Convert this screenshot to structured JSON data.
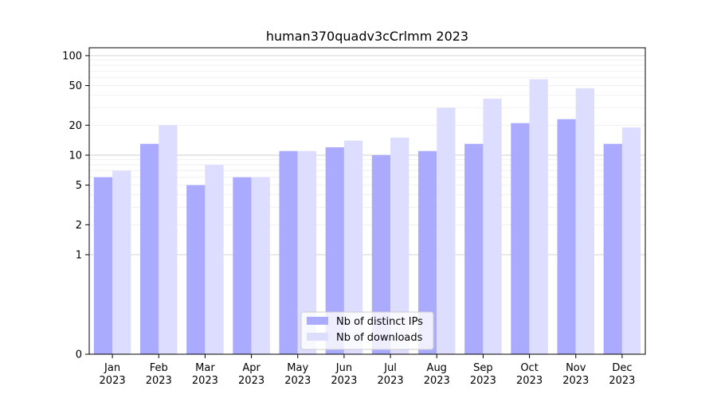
{
  "chart_data": {
    "type": "bar",
    "title": "human370quadv3cCrlmm 2023",
    "xlabel": "",
    "ylabel": "",
    "yscale": "symlog",
    "ylim": [
      0,
      120
    ],
    "yticks": [
      {
        "value": 0,
        "label": "0"
      },
      {
        "value": 1,
        "label": "1"
      },
      {
        "value": 2,
        "label": "2"
      },
      {
        "value": 5,
        "label": "5"
      },
      {
        "value": 10,
        "label": "10"
      },
      {
        "value": 20,
        "label": "20"
      },
      {
        "value": 50,
        "label": "50"
      },
      {
        "value": 100,
        "label": "100"
      }
    ],
    "grid": true,
    "legend_position": "lower-center",
    "categories": [
      {
        "month": "Jan",
        "year": "2023"
      },
      {
        "month": "Feb",
        "year": "2023"
      },
      {
        "month": "Mar",
        "year": "2023"
      },
      {
        "month": "Apr",
        "year": "2023"
      },
      {
        "month": "May",
        "year": "2023"
      },
      {
        "month": "Jun",
        "year": "2023"
      },
      {
        "month": "Jul",
        "year": "2023"
      },
      {
        "month": "Aug",
        "year": "2023"
      },
      {
        "month": "Sep",
        "year": "2023"
      },
      {
        "month": "Oct",
        "year": "2023"
      },
      {
        "month": "Nov",
        "year": "2023"
      },
      {
        "month": "Dec",
        "year": "2023"
      }
    ],
    "series": [
      {
        "name": "Nb of distinct IPs",
        "color": "#aaaaff",
        "values": [
          6,
          13,
          5,
          6,
          11,
          12,
          10,
          11,
          13,
          21,
          23,
          13
        ]
      },
      {
        "name": "Nb of downloads",
        "color": "#ddddff",
        "values": [
          7,
          20,
          8,
          6,
          11,
          14,
          15,
          30,
          37,
          58,
          47,
          19
        ]
      }
    ]
  }
}
